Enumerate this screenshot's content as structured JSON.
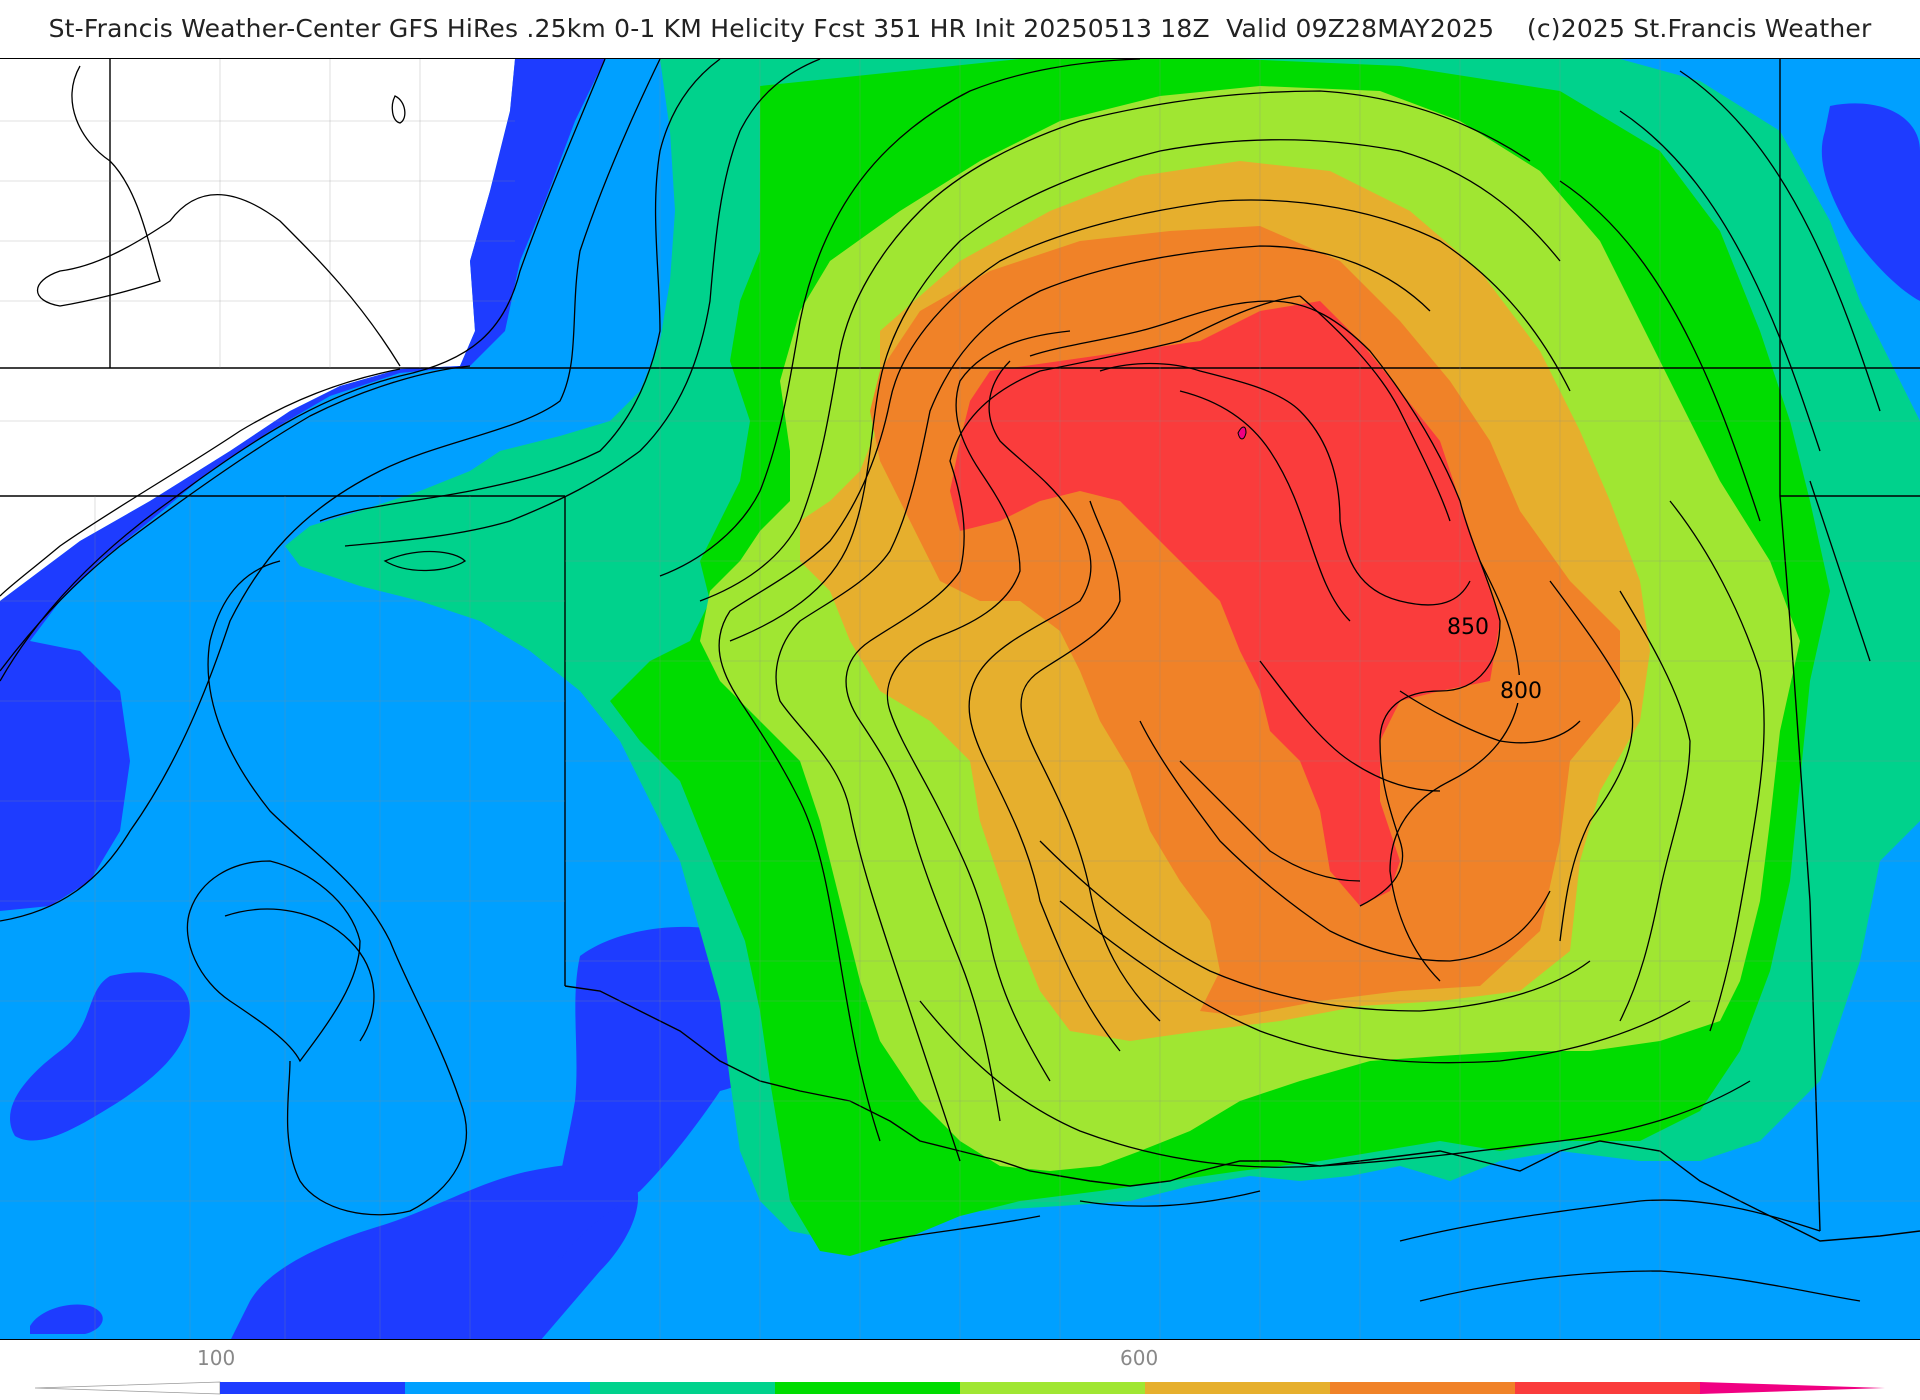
{
  "title": "St-Francis Weather-Center GFS HiRes .25km 0-1 KM Helicity Fcst 351 HR Init 20250513 18Z  Valid 09Z28MAY2025    (c)2025 St.Francis Weather",
  "contour_labels": {
    "label_850": "850",
    "label_800": "800"
  },
  "colorbar": {
    "tick_100": "100",
    "tick_600": "600",
    "colors": [
      "#ffffff",
      "#1e3cff",
      "#00a0ff",
      "#00d28c",
      "#00dc00",
      "#a0e632",
      "#e6af2d",
      "#f08228",
      "#fa3c3c",
      "#f00082"
    ]
  },
  "palette": {
    "blue_dark": "#1e3cff",
    "blue": "#00a0ff",
    "teal": "#00d28c",
    "green": "#00dc00",
    "lime": "#a0e632",
    "gold": "#e6af2d",
    "orange": "#f08228",
    "red": "#fa3c3c"
  }
}
